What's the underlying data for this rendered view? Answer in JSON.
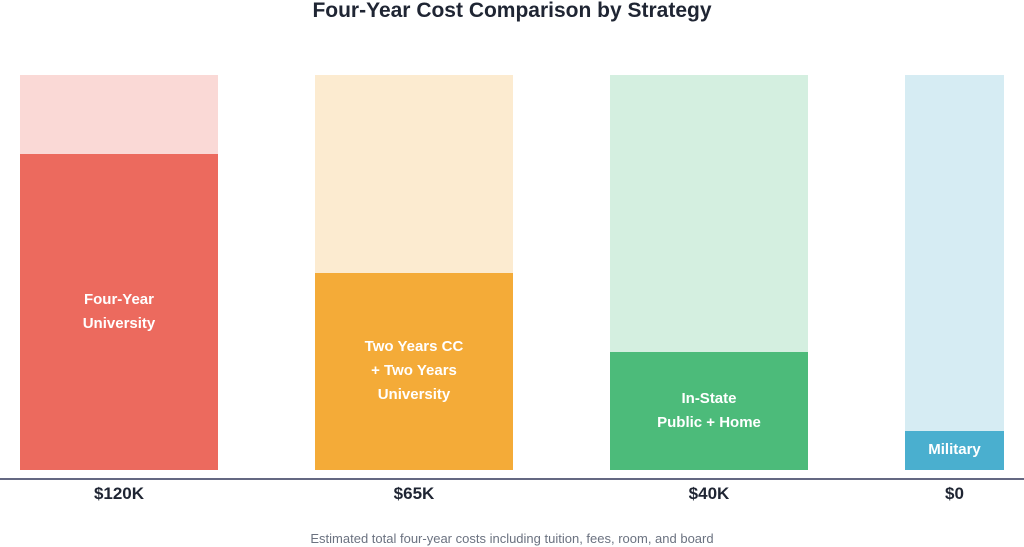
{
  "chart_data": {
    "type": "bar",
    "title": "Four-Year Cost Comparison by Strategy",
    "caption": "Estimated total four-year costs including tuition, fees, room, and board",
    "categories": [
      "Four-Year\nUniversity",
      "Two Years CC\n+ Two Years\nUniversity",
      "In-State\nPublic + Home",
      "Military"
    ],
    "value_labels": [
      "$120K",
      "$65K",
      "$40K",
      "$0"
    ],
    "values": [
      120000,
      65000,
      40000,
      0
    ],
    "fill_fraction": [
      0.8,
      0.5,
      0.3,
      0.1
    ],
    "colors": [
      "#ec6a5e",
      "#f4ab38",
      "#4cbb7a",
      "#4aafcf"
    ],
    "background_colors": [
      "#fad9d6",
      "#fcebd0",
      "#d4efe0",
      "#d6ecf3"
    ],
    "grid": false,
    "legend": "none"
  }
}
